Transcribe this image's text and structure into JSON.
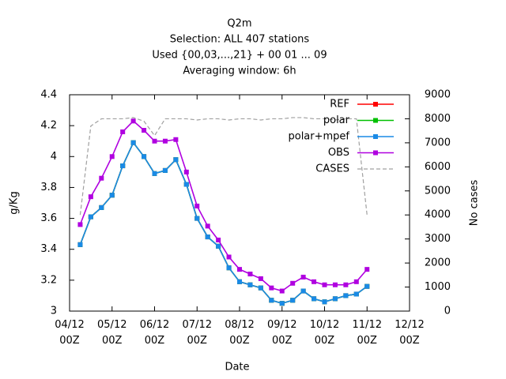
{
  "chart_data": {
    "type": "line",
    "title": [
      "Q2m",
      "Selection: ALL    407 stations",
      "Used {00,03,...,21} + 00 01 ... 09",
      "Averaging window:  6h"
    ],
    "xlabel": "Date",
    "ylabel": "g/Kg",
    "y2label": "No cases",
    "x": [
      6,
      12,
      18,
      24,
      30,
      36,
      42,
      48,
      54,
      60,
      66,
      72,
      78,
      84,
      90,
      96,
      102,
      108,
      114,
      120,
      126,
      132,
      138,
      144,
      150,
      156,
      162,
      168
    ],
    "xlim": [
      0,
      192
    ],
    "xticks": [
      {
        "value": 0,
        "label": "04/12\n00Z"
      },
      {
        "value": 24,
        "label": "05/12\n00Z"
      },
      {
        "value": 48,
        "label": "06/12\n00Z"
      },
      {
        "value": 72,
        "label": "07/12\n00Z"
      },
      {
        "value": 96,
        "label": "08/12\n00Z"
      },
      {
        "value": 120,
        "label": "09/12\n00Z"
      },
      {
        "value": 144,
        "label": "10/12\n00Z"
      },
      {
        "value": 168,
        "label": "11/12\n00Z"
      },
      {
        "value": 192,
        "label": "12/12\n00Z"
      }
    ],
    "ylim": [
      3,
      4.4
    ],
    "yticks": [
      3,
      3.2,
      3.4,
      3.6,
      3.8,
      4,
      4.2,
      4.4
    ],
    "y2lim": [
      0,
      9000
    ],
    "y2ticks": [
      0,
      1000,
      2000,
      3000,
      4000,
      5000,
      6000,
      7000,
      8000,
      9000
    ],
    "grid": false,
    "legend": "top-right",
    "series": [
      {
        "name": "REF",
        "color": "#ff0000",
        "marker": true,
        "values": [
          3.43,
          3.61,
          3.67,
          3.75,
          3.94,
          4.09,
          4.0,
          3.89,
          3.91,
          3.98,
          3.82,
          3.6,
          3.48,
          3.42,
          3.28,
          3.19,
          3.17,
          3.15,
          3.07,
          3.05,
          3.07,
          3.13,
          3.08,
          3.06,
          3.08,
          3.1,
          3.11,
          3.16
        ]
      },
      {
        "name": "polar",
        "color": "#00c000",
        "marker": true,
        "values": [
          3.43,
          3.61,
          3.67,
          3.75,
          3.94,
          4.09,
          4.0,
          3.89,
          3.91,
          3.98,
          3.82,
          3.6,
          3.48,
          3.42,
          3.28,
          3.19,
          3.17,
          3.15,
          3.07,
          3.05,
          3.07,
          3.13,
          3.08,
          3.06,
          3.08,
          3.1,
          3.11,
          3.16
        ]
      },
      {
        "name": "polar+mpef",
        "color": "#1a8ae6",
        "marker": true,
        "values": [
          3.43,
          3.61,
          3.67,
          3.75,
          3.94,
          4.09,
          4.0,
          3.89,
          3.91,
          3.98,
          3.82,
          3.6,
          3.48,
          3.42,
          3.28,
          3.19,
          3.17,
          3.15,
          3.07,
          3.05,
          3.07,
          3.13,
          3.08,
          3.06,
          3.08,
          3.1,
          3.11,
          3.16
        ]
      },
      {
        "name": "OBS",
        "color": "#b000e0",
        "marker": true,
        "values": [
          3.56,
          3.74,
          3.86,
          4.0,
          4.16,
          4.23,
          4.17,
          4.1,
          4.1,
          4.11,
          3.9,
          3.68,
          3.55,
          3.46,
          3.35,
          3.27,
          3.24,
          3.21,
          3.15,
          3.13,
          3.18,
          3.22,
          3.19,
          3.17,
          3.17,
          3.17,
          3.19,
          3.27
        ]
      },
      {
        "name": "CASES",
        "color": "#a0a0a0",
        "marker": false,
        "dashed": true,
        "axis": "y2",
        "values": [
          4000,
          7700,
          8000,
          8000,
          8000,
          8050,
          7900,
          7300,
          8000,
          8000,
          8000,
          7950,
          8000,
          8000,
          7950,
          8000,
          8000,
          7950,
          8000,
          8000,
          8050,
          8050,
          8000,
          8000,
          7950,
          8000,
          8000,
          4000
        ]
      }
    ]
  }
}
